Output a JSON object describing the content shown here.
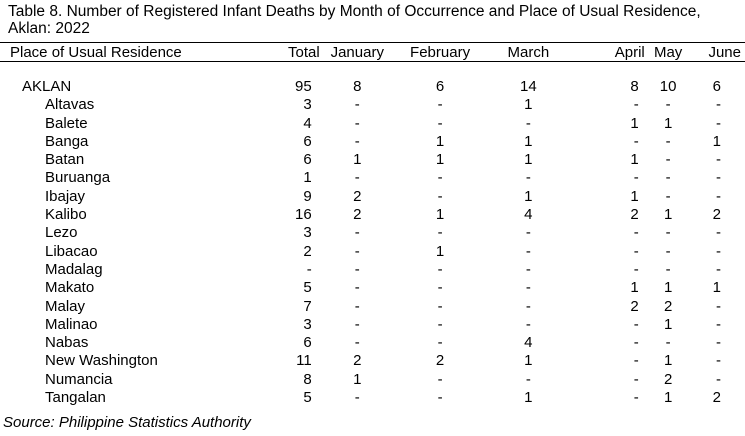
{
  "title": "Table 8. Number of Registered Infant Deaths by Month of Occurrence and Place of Usual Residence, Aklan: 2022",
  "columns": [
    "Place of Usual Residence",
    "Total",
    "January",
    "February",
    "March",
    "April",
    "May",
    "June"
  ],
  "province": {
    "place": "AKLAN",
    "total": "95",
    "jan": "8",
    "feb": "6",
    "mar": "14",
    "apr": "8",
    "may": "10",
    "jun": "6"
  },
  "rows": [
    {
      "place": "Altavas",
      "total": "3",
      "jan": "-",
      "feb": "-",
      "mar": "1",
      "apr": "-",
      "may": "-",
      "jun": "-"
    },
    {
      "place": "Balete",
      "total": "4",
      "jan": "-",
      "feb": "-",
      "mar": "-",
      "apr": "1",
      "may": "1",
      "jun": "-"
    },
    {
      "place": "Banga",
      "total": "6",
      "jan": "-",
      "feb": "1",
      "mar": "1",
      "apr": "-",
      "may": "-",
      "jun": "1"
    },
    {
      "place": "Batan",
      "total": "6",
      "jan": "1",
      "feb": "1",
      "mar": "1",
      "apr": "1",
      "may": "-",
      "jun": "-"
    },
    {
      "place": "Buruanga",
      "total": "1",
      "jan": "-",
      "feb": "-",
      "mar": "-",
      "apr": "-",
      "may": "-",
      "jun": "-"
    },
    {
      "place": "Ibajay",
      "total": "9",
      "jan": "2",
      "feb": "-",
      "mar": "1",
      "apr": "1",
      "may": "-",
      "jun": "-"
    },
    {
      "place": "Kalibo",
      "total": "16",
      "jan": "2",
      "feb": "1",
      "mar": "4",
      "apr": "2",
      "may": "1",
      "jun": "2"
    },
    {
      "place": "Lezo",
      "total": "3",
      "jan": "-",
      "feb": "-",
      "mar": "-",
      "apr": "-",
      "may": "-",
      "jun": "-"
    },
    {
      "place": "Libacao",
      "total": "2",
      "jan": "-",
      "feb": "1",
      "mar": "-",
      "apr": "-",
      "may": "-",
      "jun": "-"
    },
    {
      "place": "Madalag",
      "total": "-",
      "jan": "-",
      "feb": "-",
      "mar": "-",
      "apr": "-",
      "may": "-",
      "jun": "-"
    },
    {
      "place": "Makato",
      "total": "5",
      "jan": "-",
      "feb": "-",
      "mar": "-",
      "apr": "1",
      "may": "1",
      "jun": "1"
    },
    {
      "place": "Malay",
      "total": "7",
      "jan": "-",
      "feb": "-",
      "mar": "-",
      "apr": "2",
      "may": "2",
      "jun": "-"
    },
    {
      "place": "Malinao",
      "total": "3",
      "jan": "-",
      "feb": "-",
      "mar": "-",
      "apr": "-",
      "may": "1",
      "jun": "-"
    },
    {
      "place": "Nabas",
      "total": "6",
      "jan": "-",
      "feb": "-",
      "mar": "4",
      "apr": "-",
      "may": "-",
      "jun": "-"
    },
    {
      "place": "New Washington",
      "total": "11",
      "jan": "2",
      "feb": "2",
      "mar": "1",
      "apr": "-",
      "may": "1",
      "jun": "-"
    },
    {
      "place": "Numancia",
      "total": "8",
      "jan": "1",
      "feb": "-",
      "mar": "-",
      "apr": "-",
      "may": "2",
      "jun": "-"
    },
    {
      "place": "Tangalan",
      "total": "5",
      "jan": "-",
      "feb": "-",
      "mar": "1",
      "apr": "-",
      "may": "1",
      "jun": "2"
    }
  ],
  "source": "Source: Philippine Statistics Authority"
}
